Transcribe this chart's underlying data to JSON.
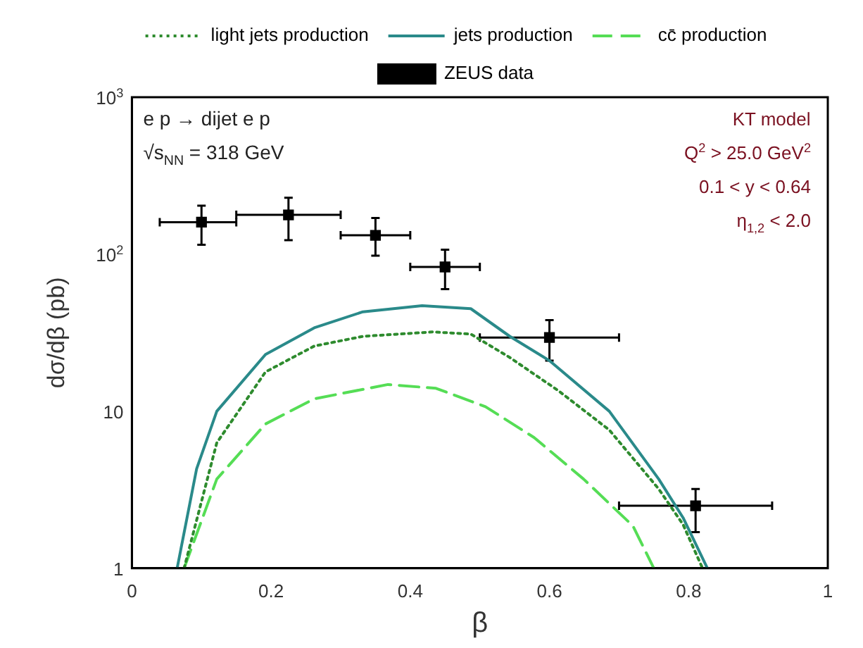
{
  "chart_data": {
    "type": "line",
    "xlabel": "β",
    "ylabel": "dσ/dβ (pb)",
    "xlim": [
      0,
      1
    ],
    "xticks": [
      0,
      0.2,
      0.4,
      0.6,
      0.8,
      1
    ],
    "ylim": [
      1,
      1000
    ],
    "yticks": [
      1,
      10,
      {
        "value": 100,
        "label": "10$^{2}$"
      },
      {
        "value": 1000,
        "label": "10$^{3}$"
      }
    ],
    "log": "y",
    "grid": false,
    "legend": "top",
    "annotations": [
      "e p → dijet e p",
      "√s$_{NN}$ = 318 GeV",
      "KT model",
      "Q$^{2}$ > 25.0 GeV$^{2}$",
      "0.1 < y < 0.64",
      "η$_{1,2}$ < 2.0"
    ],
    "series": [
      {
        "name": "light jets production",
        "color": "#2e8b2e",
        "line_style": "dotted",
        "marker": "none",
        "x": [
          0.075,
          0.122,
          0.192,
          0.262,
          0.332,
          0.432,
          0.487,
          0.543,
          0.613,
          0.686,
          0.757,
          0.792,
          0.82
        ],
        "values": [
          1,
          6.3,
          17.8,
          26,
          30,
          32,
          31,
          22,
          13.5,
          7.6,
          3.2,
          1.9,
          1
        ]
      },
      {
        "name": "jets production",
        "color": "#2a8a8a",
        "line_style": "solid",
        "marker": "none",
        "x": [
          0.065,
          0.093,
          0.122,
          0.192,
          0.262,
          0.332,
          0.417,
          0.487,
          0.543,
          0.6,
          0.686,
          0.757,
          0.792,
          0.827
        ],
        "values": [
          1,
          4.3,
          10,
          23,
          34,
          43,
          47,
          45,
          30,
          21,
          10,
          3.7,
          2.1,
          1
        ]
      },
      {
        "name": "cc̄ production",
        "color": "#55dd55",
        "line_style": "dashed",
        "marker": "none",
        "x": [
          0.075,
          0.122,
          0.192,
          0.262,
          0.368,
          0.437,
          0.508,
          0.578,
          0.649,
          0.72,
          0.75
        ],
        "values": [
          1,
          3.7,
          8.3,
          12,
          14.8,
          14,
          10.7,
          6.8,
          3.7,
          1.86,
          1
        ]
      },
      {
        "name": "ZEUS data",
        "type": "scatter",
        "color": "#000000",
        "marker": "square",
        "x": [
          0.1,
          0.225,
          0.35,
          0.45,
          0.6,
          0.81
        ],
        "values": [
          160,
          178,
          132,
          83,
          29.5,
          2.5
        ],
        "errors": [
          [
            115,
            204
          ],
          [
            123,
            229
          ],
          [
            98,
            170
          ],
          [
            60,
            107
          ],
          [
            21,
            38
          ],
          [
            1.7,
            3.2
          ]
        ],
        "xerrors": [
          [
            0.04,
            0.15
          ],
          [
            0.15,
            0.3
          ],
          [
            0.3,
            0.4
          ],
          [
            0.4,
            0.5
          ],
          [
            0.5,
            0.7
          ],
          [
            0.7,
            0.92
          ]
        ]
      }
    ]
  }
}
